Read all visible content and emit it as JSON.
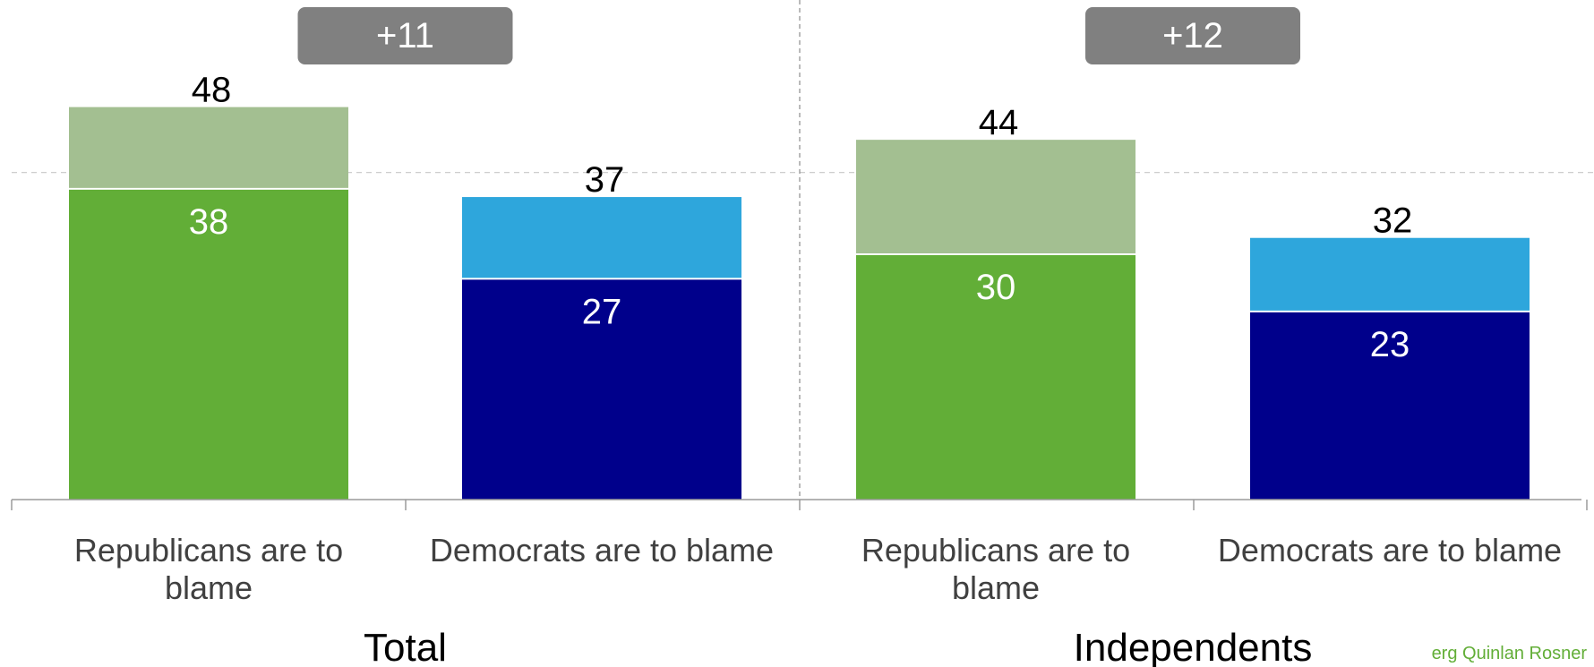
{
  "chart_data": {
    "type": "bar",
    "stacked": true,
    "ylim": [
      0,
      60
    ],
    "grid": false,
    "groups": [
      {
        "name": "Total",
        "difference_label": "+11",
        "bars": [
          {
            "category": "Republicans are to blame",
            "strong": 38,
            "total": 48,
            "strong_color": "#62ae37",
            "rest_color": "#a3bf91"
          },
          {
            "category": "Democrats are to blame",
            "strong": 27,
            "total": 37,
            "strong_color": "#00008b",
            "rest_color": "#2ea6dc"
          }
        ]
      },
      {
        "name": "Independents",
        "difference_label": "+12",
        "bars": [
          {
            "category": "Republicans are to blame",
            "strong": 30,
            "total": 44,
            "strong_color": "#62ae37",
            "rest_color": "#a3bf91"
          },
          {
            "category": "Democrats are to blame",
            "strong": 23,
            "total": 32,
            "strong_color": "#00008b",
            "rest_color": "#2ea6dc"
          }
        ]
      }
    ],
    "reference_line_value": 40
  },
  "watermark": "erg Quinlan Rosner"
}
